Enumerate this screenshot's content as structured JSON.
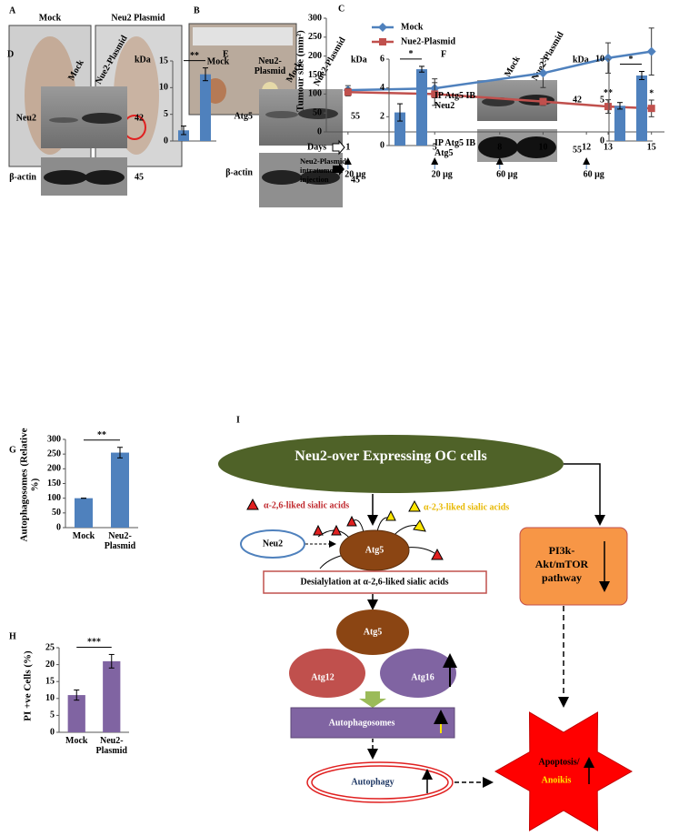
{
  "panel_a": {
    "label": "A",
    "left": "Mock",
    "right": "Neu2 Plasmid"
  },
  "panel_b": {
    "label": "B",
    "left": "Mock",
    "right": "Neu2-Plasmid"
  },
  "blots": [
    {
      "columns": [
        "Mock",
        "Nue2-Plasmid"
      ],
      "unit": "kDa",
      "rows": [
        {
          "name": "Neu2",
          "kda": 42
        },
        {
          "name": "β-actin",
          "kda": 45
        }
      ]
    },
    {
      "columns": [
        "Mock",
        "Nue2-Plasmid"
      ],
      "unit": "kDa",
      "rows": [
        {
          "name": "Atg5",
          "kda": 55
        },
        {
          "name": "β-actin",
          "kda": 45
        }
      ]
    },
    {
      "columns": [
        "Mock",
        "Nue2-Plasmid"
      ],
      "unit": "kDa",
      "rows": [
        {
          "name": "IP Atg5 IB Neu2",
          "kda": 42
        },
        {
          "name": "IP Atg5 IB Atg5",
          "kda": 55
        }
      ]
    }
  ],
  "diagram": {
    "label": "I",
    "top": "Neu2-over Expressing OC cells",
    "legend_26": "α-2,6-liked sialic acids",
    "legend_23": "α-2,3-liked sialic acids",
    "neu2": "Neu2",
    "atg5_a": "Atg5",
    "desialylation": "Desialylation at α-2,6-liked sialic acids",
    "atg5_b": "Atg5",
    "atg12": "Atg12",
    "atg16": "Atg16",
    "autophagosomes": "Autophagosomes",
    "autophagy": "Autophagy",
    "pathway": "PI3k-Akt/mTOR pathway",
    "apoptosis": "Apoptosis/",
    "anoikis": "Anoikis"
  },
  "chart_data": [
    {
      "type": "line",
      "label": "C",
      "ylabel": "Tumour size (mm²)",
      "x": [
        1,
        5,
        10,
        13,
        15
      ],
      "series": [
        {
          "name": "Mock",
          "color": "#4f81bd",
          "marker": "diamond",
          "values": [
            110,
            115,
            155,
            195,
            212
          ],
          "errors": [
            12,
            25,
            38,
            40,
            62
          ]
        },
        {
          "name": "Nue2-Plasmid",
          "color": "#c0504d",
          "marker": "square",
          "values": [
            105,
            100,
            80,
            67,
            62
          ],
          "errors": [
            10,
            30,
            10,
            18,
            22
          ]
        }
      ],
      "annotations": [
        {
          "x": 13,
          "text": "**"
        },
        {
          "x": 15,
          "text": "*"
        }
      ],
      "xlim": [
        0,
        15.6
      ],
      "ylim": [
        0,
        300
      ],
      "yticks": [
        0,
        50,
        100,
        150,
        200,
        250,
        300
      ],
      "xlabel": "Days",
      "xticks": [
        1,
        5,
        8,
        10,
        12,
        13,
        15
      ],
      "injection_label": "Neu2-Plasmid intratumoral injection",
      "injections": [
        {
          "x": 1,
          "label": "20 μg"
        },
        {
          "x": 5,
          "label": "20 μg"
        },
        {
          "x": 8,
          "label": "60 μg"
        },
        {
          "x": 12,
          "label": "60 μg"
        }
      ]
    },
    {
      "type": "bar",
      "label": "D",
      "categories": [
        null,
        null
      ],
      "values": [
        2,
        12.5
      ],
      "errors": [
        0.8,
        1.2
      ],
      "color": "#4f81bd",
      "ylim": [
        0,
        15
      ],
      "yticks": [
        0,
        5,
        10,
        15
      ],
      "annotation": "**"
    },
    {
      "type": "bar",
      "label": "E",
      "categories": [
        null,
        null
      ],
      "values": [
        2.3,
        5.3
      ],
      "errors": [
        0.6,
        0.2
      ],
      "color": "#4f81bd",
      "ylim": [
        0,
        6
      ],
      "yticks": [
        0,
        2,
        4,
        6
      ],
      "annotation": "*"
    },
    {
      "type": "bar",
      "label": "F",
      "categories": [
        null,
        null
      ],
      "values": [
        4.3,
        8
      ],
      "errors": [
        0.4,
        0.5
      ],
      "color": "#4f81bd",
      "ylim": [
        0,
        10
      ],
      "yticks": [
        0,
        5,
        10
      ],
      "annotation": "*"
    },
    {
      "type": "bar",
      "label": "G",
      "ylabel": "Autophagosomes (Relative %)",
      "categories": [
        "Mock",
        "Neu2-Plasmid"
      ],
      "values": [
        100,
        255
      ],
      "errors": [
        0,
        18
      ],
      "color": "#4f81bd",
      "ylim": [
        0,
        300
      ],
      "yticks": [
        0,
        50,
        100,
        150,
        200,
        250,
        300
      ],
      "annotation": "**"
    },
    {
      "type": "bar",
      "label": "H",
      "ylabel": "PI +ve Cells (%)",
      "categories": [
        "Mock",
        "Neu2-Plasmid"
      ],
      "values": [
        11,
        21
      ],
      "errors": [
        1.5,
        2
      ],
      "color": "#8064a2",
      "ylim": [
        0,
        25
      ],
      "yticks": [
        0,
        5,
        10,
        15,
        20,
        25
      ],
      "annotation": "***"
    }
  ]
}
